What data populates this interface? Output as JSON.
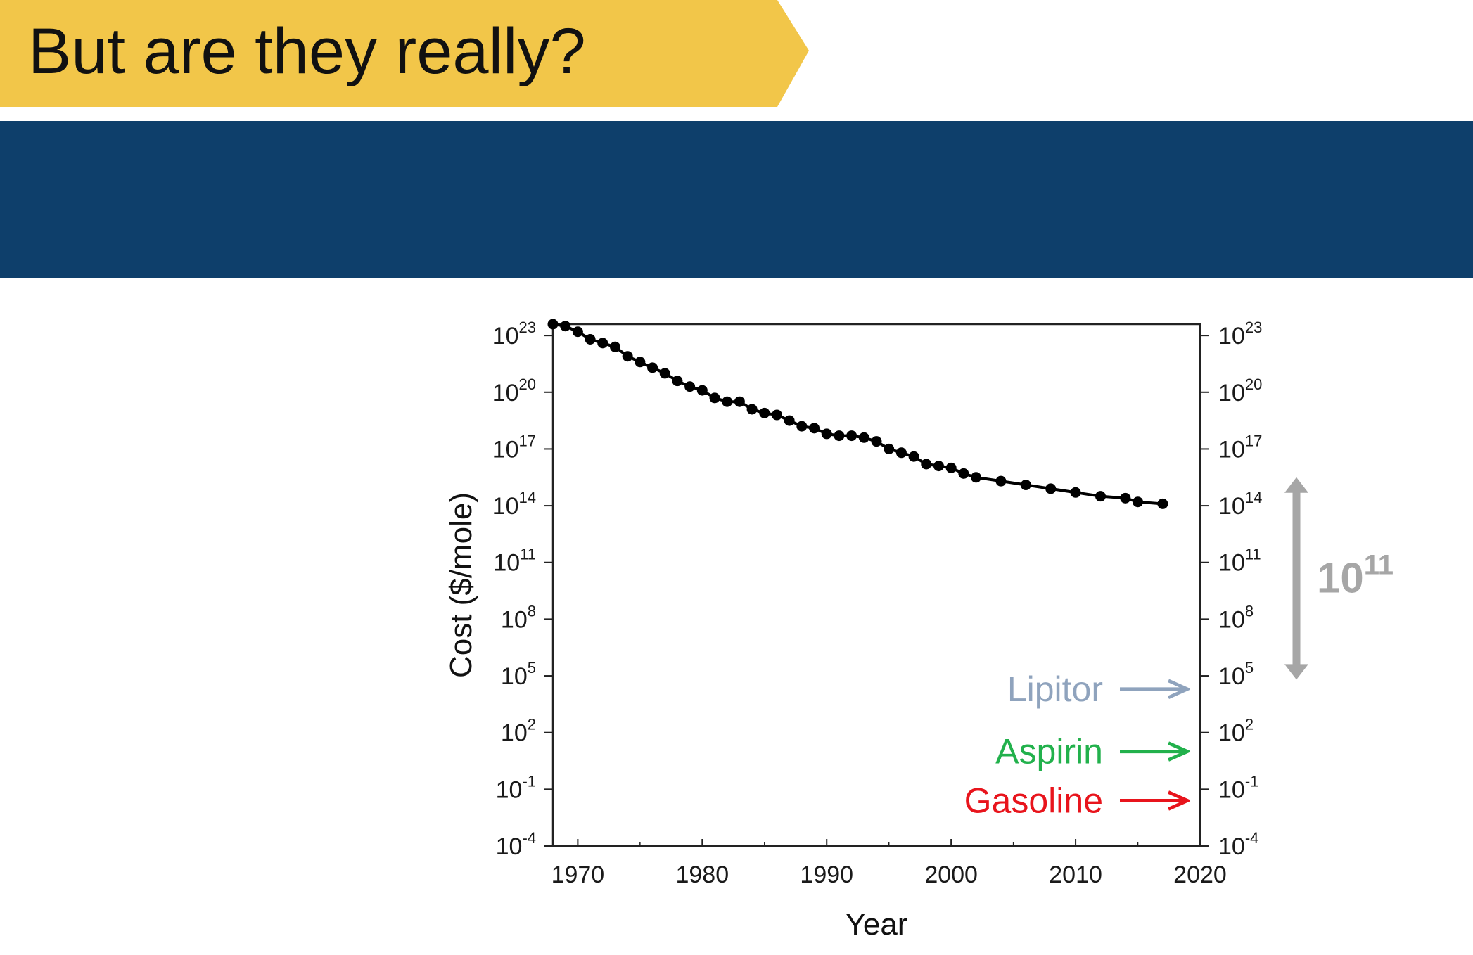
{
  "slide": {
    "title": "But are they really?",
    "colors": {
      "banner": "#f2c649",
      "band": "#0e3f6b"
    }
  },
  "chart_data": {
    "type": "line",
    "title": "",
    "xlabel": "Year",
    "ylabel": "Cost ($/mole)",
    "xlim": [
      1968,
      2020
    ],
    "x_ticks": [
      "1970",
      "1980",
      "1990",
      "2000",
      "2010",
      "2020"
    ],
    "y_scale": "log",
    "ylim_exponent": [
      -4,
      23.6
    ],
    "y_tick_base": "10",
    "y_tick_exponents": [
      "-4",
      "-1",
      "2",
      "5",
      "8",
      "11",
      "14",
      "17",
      "20",
      "23"
    ],
    "right_axis_mirrors_left": true,
    "grid": false,
    "legend": "none",
    "series": [
      {
        "color": "#000000",
        "marker": "circle",
        "x": [
          1968,
          1969,
          1970,
          1971,
          1972,
          1973,
          1974,
          1975,
          1976,
          1977,
          1978,
          1979,
          1980,
          1981,
          1982,
          1983,
          1984,
          1985,
          1986,
          1987,
          1988,
          1989,
          1990,
          1991,
          1992,
          1993,
          1994,
          1995,
          1996,
          1997,
          1998,
          1999,
          2000,
          2001,
          2002,
          2004,
          2006,
          2008,
          2010,
          2012,
          2014,
          2015,
          2017
        ],
        "y_exponent": [
          23.6,
          23.5,
          23.2,
          22.8,
          22.6,
          22.4,
          21.9,
          21.6,
          21.3,
          21.0,
          20.6,
          20.3,
          20.1,
          19.7,
          19.5,
          19.5,
          19.1,
          18.9,
          18.8,
          18.5,
          18.2,
          18.1,
          17.8,
          17.7,
          17.7,
          17.6,
          17.4,
          17.0,
          16.8,
          16.6,
          16.2,
          16.1,
          16.0,
          15.7,
          15.5,
          15.3,
          15.1,
          14.9,
          14.7,
          14.5,
          14.4,
          14.2,
          14.1
        ]
      }
    ],
    "reference_arrows": [
      {
        "label": "Lipitor",
        "color": "#8fa3bd",
        "y_exponent": 4.3
      },
      {
        "label": "Aspirin",
        "color": "#22b14c",
        "y_exponent": 1.0
      },
      {
        "label": "Gasoline",
        "color": "#e8141c",
        "y_exponent": -1.6
      }
    ],
    "magnitude_annotation": {
      "base": "10",
      "exponent": "11",
      "color": "#a6a6a6",
      "y_exponent_top": 15.5,
      "y_exponent_bottom": 4.8
    }
  }
}
